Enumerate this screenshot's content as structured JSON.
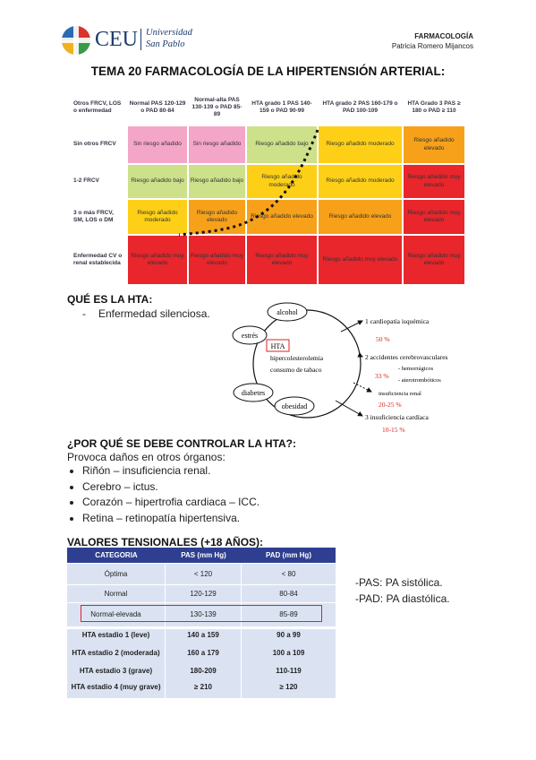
{
  "header": {
    "logo": "CEU",
    "logo_line1": "Universidad",
    "logo_line2": "San Pablo",
    "subject": "FARMACOLOGÍA",
    "author": "Patricia Romero Mijancos"
  },
  "title": "TEMA 20 FARMACOLOGÍA DE LA HIPERTENSIÓN ARTERIAL:",
  "risk_table": {
    "header": [
      "Otros FRCV, LOS o enfermedad",
      "Normal PAS 120-129 o PAD 80-84",
      "Normal-alta PAS 130-139 o PAD 85-89",
      "HTA grado 1 PAS 140-159 o PAD 90-99",
      "HTA grado 2 PAS 160-179 o PAD 100-109",
      "HTA Grado 3 PAS ≥ 180 o PAD ≥ 110"
    ],
    "rows": [
      {
        "label": "Sin otros FRCV",
        "cells": [
          {
            "text": "Sin riesgo añadido",
            "color": "#f4a6c8"
          },
          {
            "text": "Sin riesgo añadido",
            "color": "#f4a6c8"
          },
          {
            "text": "Riesgo añadido bajo",
            "color": "#cde08a"
          },
          {
            "text": "Riesgo añadido moderado",
            "color": "#fdd017"
          },
          {
            "text": "Riesgo añadido elevado",
            "color": "#f7a11a"
          }
        ]
      },
      {
        "label": "1-2 FRCV",
        "cells": [
          {
            "text": "Riesgo añadido bajo",
            "color": "#cde08a"
          },
          {
            "text": "Riesgo añadido bajo",
            "color": "#cde08a"
          },
          {
            "text": "Riesgo añadido moderado",
            "color": "#fdd017"
          },
          {
            "text": "Riesgo añadido moderado",
            "color": "#fdd017"
          },
          {
            "text": "Riesgo añadido muy elevado",
            "color": "#e8262c"
          }
        ]
      },
      {
        "label": "3 o más FRCV, SM, LOS o DM",
        "cells": [
          {
            "text": "Riesgo añadido moderado",
            "color": "#fdd017"
          },
          {
            "text": "Riesgo añadido elevado",
            "color": "#f7a11a"
          },
          {
            "text": "Riesgo añadido elevado",
            "color": "#f7a11a"
          },
          {
            "text": "Riesgo añadido elevado",
            "color": "#f7a11a"
          },
          {
            "text": "Riesgo añadido muy elevado",
            "color": "#e8262c"
          }
        ]
      },
      {
        "label": "Enfermedad CV o renal establecida",
        "cells": [
          {
            "text": "Riesgo añadido muy elevado",
            "color": "#e8262c"
          },
          {
            "text": "Riesgo añadido muy elevado",
            "color": "#e8262c"
          },
          {
            "text": "Riesgo añadido muy elevado",
            "color": "#e8262c"
          },
          {
            "text": "Riesgo añadido muy elevado",
            "color": "#e8262c"
          },
          {
            "text": "Riesgo añadido muy elevado",
            "color": "#e8262c"
          }
        ]
      }
    ]
  },
  "section1": {
    "heading": "QUÉ ES LA HTA:",
    "dash": "-",
    "item": "Enfermedad silenciosa."
  },
  "diagram": {
    "factors": [
      "alcohol",
      "estrés",
      "diabetes",
      "obesidad"
    ],
    "center": "HTA",
    "inner": [
      "hipercolesterolemia",
      "consumo de tabaco"
    ],
    "outcomes": [
      "1  cardiopatía isquémica",
      "2  accidentes cerebrovasculares",
      "- hemorrágicos",
      "- aterotrombóticos",
      "insuficiencia renal",
      "3  insuficiencia cardíaca"
    ],
    "percents": [
      "50 %",
      "33 %",
      "20-25 %",
      "10-15 %"
    ]
  },
  "section2": {
    "heading": "¿POR QUÉ SE DEBE CONTROLAR LA HTA?:",
    "intro": "Provoca daños en otros órganos:",
    "items": [
      "Riñón – insuficiencia renal.",
      "Cerebro – ictus.",
      "Corazón – hipertrofia cardiaca – ICC.",
      "Retina – retinopatía hipertensiva."
    ]
  },
  "section3": {
    "heading": "VALORES TENSIONALES (+18 AÑOS):",
    "table": {
      "header": [
        "CATEGORIA",
        "PAS (mm Hg)",
        "PAD (mm Hg)"
      ],
      "rows": [
        [
          "Óptima",
          "< 120",
          "< 80"
        ],
        [
          "Normal",
          "120-129",
          "80-84"
        ],
        [
          "Normal-elevada",
          "130-139",
          "85-89"
        ],
        [
          "HTA estadio 1 (leve)",
          "140 a 159",
          "90 a 99"
        ],
        [
          "HTA estadio 2 (moderada)",
          "160 a 179",
          "100 a 109"
        ],
        [
          "HTA estadio 3 (grave)",
          "180-209",
          "110-119"
        ],
        [
          "HTA estadio 4 (muy grave)",
          "≥ 210",
          "≥ 120"
        ]
      ]
    },
    "notes": [
      "-PAS:  PA sistólica.",
      "-PAD: PA diastólica."
    ]
  }
}
